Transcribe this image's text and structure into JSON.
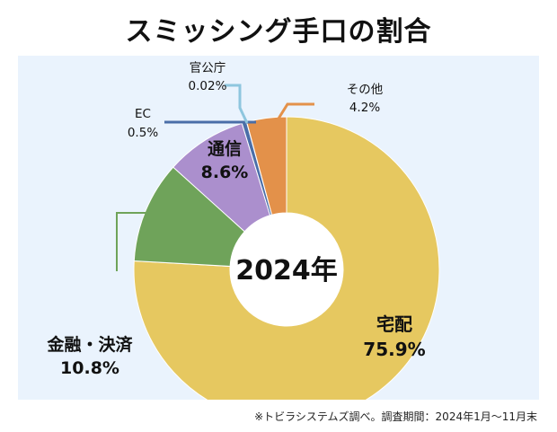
{
  "title": "スミッシング手口の割合",
  "footnote": "※トビラシステムズ調べ。調査期間：2024年1月〜11月末",
  "chart_data": {
    "type": "pie",
    "variant": "donut",
    "center_label": "2024年",
    "unit": "%",
    "slices": [
      {
        "name": "宅配",
        "value": 75.9,
        "value_label": "75.9%",
        "color": "#e6c860"
      },
      {
        "name": "金融・決済",
        "value": 10.8,
        "value_label": "10.8%",
        "color": "#6fa35a"
      },
      {
        "name": "通信",
        "value": 8.6,
        "value_label": "8.6%",
        "color": "#ab8fcd"
      },
      {
        "name": "EC",
        "value": 0.5,
        "value_label": "0.5%",
        "color": "#4a6ea8"
      },
      {
        "name": "官公庁",
        "value": 0.02,
        "value_label": "0.02%",
        "color": "#8ec6de"
      },
      {
        "name": "その他",
        "value": 4.2,
        "value_label": "4.2%",
        "color": "#e3914a"
      }
    ]
  }
}
